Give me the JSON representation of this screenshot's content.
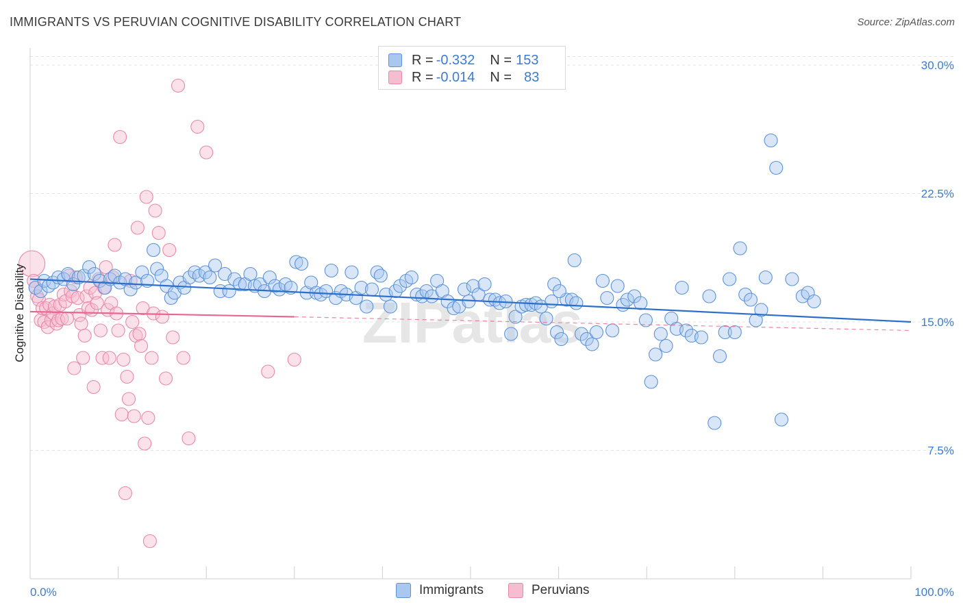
{
  "header": {
    "title": "IMMIGRANTS VS PERUVIAN COGNITIVE DISABILITY CORRELATION CHART",
    "source": "Source: ZipAtlas.com"
  },
  "legend": {
    "rows": [
      {
        "r_label": "R = ",
        "r_value": "-0.332",
        "n_label": "N = ",
        "n_value": "153"
      },
      {
        "r_label": "R = ",
        "r_value": "-0.014",
        "n_label": "N = ",
        "n_value": "83"
      }
    ]
  },
  "watermark": "ZIPatlas",
  "colors": {
    "immigrants_fill": "#a9c8ef",
    "immigrants_stroke": "#5b92d8",
    "immigrants_line": "#2c6fcb",
    "peruvians_fill": "#f6bcd0",
    "peruvians_stroke": "#e889a8",
    "peruvians_line": "#e8678f",
    "tick_label": "#3d7bd1",
    "grid": "#e3e3e3"
  },
  "chart_data": {
    "type": "scatter",
    "title": "IMMIGRANTS VS PERUVIAN COGNITIVE DISABILITY CORRELATION CHART",
    "ylabel": "Cognitive Disability",
    "xlabel": "",
    "xlim": [
      0,
      100
    ],
    "ylim": [
      0,
      31
    ],
    "x_tick_labels": [
      "0.0%",
      "100.0%"
    ],
    "y_ticks": [
      7.5,
      15.0,
      22.5,
      30.0
    ],
    "y_tick_labels": [
      "7.5%",
      "15.0%",
      "22.5%",
      "30.0%"
    ],
    "grid": "horizontal dashed",
    "legend_position": "top-center",
    "series": [
      {
        "name": "Immigrants",
        "trend": {
          "x": [
            0,
            100
          ],
          "y": [
            17.5,
            15.0
          ],
          "dashed_from": null
        },
        "points": [
          [
            0.6,
            17.0
          ],
          [
            1.2,
            16.8
          ],
          [
            1.6,
            17.4
          ],
          [
            2.1,
            17.1
          ],
          [
            2.6,
            17.3
          ],
          [
            3.2,
            17.6
          ],
          [
            3.8,
            17.5
          ],
          [
            4.3,
            17.8
          ],
          [
            4.9,
            17.2
          ],
          [
            5.5,
            17.6
          ],
          [
            6.1,
            17.7
          ],
          [
            6.7,
            18.2
          ],
          [
            7.3,
            17.8
          ],
          [
            7.9,
            17.4
          ],
          [
            8.5,
            17.0
          ],
          [
            9.1,
            17.5
          ],
          [
            9.6,
            17.7
          ],
          [
            10.2,
            17.3
          ],
          [
            10.8,
            17.5
          ],
          [
            11.4,
            16.9
          ],
          [
            12.0,
            17.3
          ],
          [
            12.7,
            17.9
          ],
          [
            13.3,
            17.4
          ],
          [
            14.0,
            19.2
          ],
          [
            14.4,
            18.1
          ],
          [
            14.9,
            17.7
          ],
          [
            15.5,
            17.1
          ],
          [
            16.0,
            16.4
          ],
          [
            16.4,
            16.7
          ],
          [
            17.0,
            17.3
          ],
          [
            17.5,
            17.0
          ],
          [
            18.1,
            17.6
          ],
          [
            18.7,
            17.9
          ],
          [
            19.2,
            17.7
          ],
          [
            19.9,
            17.9
          ],
          [
            20.4,
            17.6
          ],
          [
            21.0,
            18.3
          ],
          [
            21.6,
            16.8
          ],
          [
            22.1,
            17.8
          ],
          [
            22.6,
            16.8
          ],
          [
            23.2,
            17.5
          ],
          [
            23.8,
            17.2
          ],
          [
            24.4,
            17.2
          ],
          [
            25.0,
            17.8
          ],
          [
            25.5,
            17.1
          ],
          [
            26.1,
            17.2
          ],
          [
            26.6,
            16.8
          ],
          [
            27.2,
            17.6
          ],
          [
            27.8,
            17.1
          ],
          [
            28.3,
            16.9
          ],
          [
            29.0,
            17.2
          ],
          [
            29.6,
            17.0
          ],
          [
            30.2,
            18.5
          ],
          [
            30.8,
            18.4
          ],
          [
            31.4,
            16.7
          ],
          [
            31.9,
            17.3
          ],
          [
            32.5,
            16.7
          ],
          [
            33.0,
            16.6
          ],
          [
            33.6,
            16.8
          ],
          [
            34.2,
            18.0
          ],
          [
            34.7,
            16.4
          ],
          [
            35.3,
            16.8
          ],
          [
            35.9,
            16.6
          ],
          [
            36.5,
            17.9
          ],
          [
            37.0,
            16.4
          ],
          [
            37.6,
            17.0
          ],
          [
            38.2,
            15.9
          ],
          [
            38.8,
            16.9
          ],
          [
            39.4,
            17.9
          ],
          [
            39.8,
            17.7
          ],
          [
            40.4,
            16.6
          ],
          [
            40.9,
            15.9
          ],
          [
            41.5,
            16.8
          ],
          [
            42.0,
            17.1
          ],
          [
            42.7,
            17.4
          ],
          [
            43.3,
            17.6
          ],
          [
            43.9,
            16.6
          ],
          [
            44.5,
            16.5
          ],
          [
            45.0,
            16.8
          ],
          [
            45.6,
            16.5
          ],
          [
            46.2,
            17.4
          ],
          [
            46.8,
            16.8
          ],
          [
            47.4,
            16.2
          ],
          [
            48.1,
            15.8
          ],
          [
            48.7,
            15.9
          ],
          [
            49.3,
            16.9
          ],
          [
            49.8,
            16.2
          ],
          [
            50.3,
            17.1
          ],
          [
            50.9,
            16.6
          ],
          [
            51.6,
            17.2
          ],
          [
            52.2,
            16.3
          ],
          [
            52.8,
            16.3
          ],
          [
            53.3,
            16.1
          ],
          [
            54.0,
            16.2
          ],
          [
            54.6,
            14.3
          ],
          [
            55.1,
            15.3
          ],
          [
            55.8,
            15.9
          ],
          [
            56.3,
            16.0
          ],
          [
            56.9,
            16.0
          ],
          [
            57.4,
            16.1
          ],
          [
            58.0,
            15.9
          ],
          [
            58.6,
            15.2
          ],
          [
            59.2,
            16.2
          ],
          [
            59.8,
            14.4
          ],
          [
            60.3,
            14.0
          ],
          [
            60.9,
            16.3
          ],
          [
            61.5,
            16.3
          ],
          [
            62.0,
            16.1
          ],
          [
            62.6,
            14.3
          ],
          [
            63.2,
            14.0
          ],
          [
            63.8,
            13.7
          ],
          [
            64.3,
            14.4
          ],
          [
            65.0,
            17.4
          ],
          [
            65.5,
            16.4
          ],
          [
            66.1,
            14.5
          ],
          [
            66.7,
            17.1
          ],
          [
            67.3,
            16.0
          ],
          [
            67.8,
            16.3
          ],
          [
            68.6,
            16.5
          ],
          [
            69.3,
            16.1
          ],
          [
            69.9,
            15.1
          ],
          [
            70.5,
            11.5
          ],
          [
            71.0,
            13.1
          ],
          [
            71.6,
            14.3
          ],
          [
            72.2,
            13.6
          ],
          [
            72.8,
            15.2
          ],
          [
            73.4,
            14.6
          ],
          [
            74.0,
            17.0
          ],
          [
            74.5,
            14.5
          ],
          [
            75.1,
            14.2
          ],
          [
            76.2,
            14.1
          ],
          [
            77.1,
            16.5
          ],
          [
            77.7,
            9.1
          ],
          [
            78.3,
            13.0
          ],
          [
            78.9,
            14.4
          ],
          [
            79.4,
            17.5
          ],
          [
            80.0,
            14.4
          ],
          [
            80.6,
            19.3
          ],
          [
            81.2,
            16.6
          ],
          [
            81.8,
            16.3
          ],
          [
            82.4,
            15.1
          ],
          [
            83.0,
            15.7
          ],
          [
            83.5,
            17.6
          ],
          [
            84.1,
            25.6
          ],
          [
            84.7,
            24.0
          ],
          [
            85.3,
            9.3
          ],
          [
            86.5,
            17.5
          ],
          [
            87.7,
            16.5
          ],
          [
            88.3,
            16.7
          ],
          [
            89.0,
            16.2
          ],
          [
            61.8,
            18.6
          ],
          [
            59.5,
            17.2
          ],
          [
            60.1,
            16.8
          ]
        ]
      },
      {
        "name": "Peruvians",
        "trend": {
          "x": [
            0,
            30,
            100
          ],
          "y": [
            15.6,
            15.3,
            14.5
          ],
          "dashed_from": 30
        },
        "points": [
          [
            0.2,
            18.4
          ],
          [
            0.4,
            17.4
          ],
          [
            0.6,
            17.0
          ],
          [
            0.8,
            16.5
          ],
          [
            1.0,
            16.3
          ],
          [
            1.2,
            15.1
          ],
          [
            1.4,
            15.8
          ],
          [
            1.6,
            15.0
          ],
          [
            1.8,
            15.8
          ],
          [
            2.0,
            14.7
          ],
          [
            2.2,
            16.0
          ],
          [
            2.4,
            15.1
          ],
          [
            2.6,
            15.5
          ],
          [
            2.8,
            15.9
          ],
          [
            3.0,
            14.9
          ],
          [
            3.2,
            15.1
          ],
          [
            3.4,
            16.0
          ],
          [
            3.6,
            15.2
          ],
          [
            3.8,
            16.6
          ],
          [
            4.0,
            16.2
          ],
          [
            4.2,
            15.2
          ],
          [
            4.4,
            17.7
          ],
          [
            4.6,
            16.8
          ],
          [
            4.8,
            16.5
          ],
          [
            5.0,
            12.3
          ],
          [
            5.2,
            17.6
          ],
          [
            5.4,
            16.4
          ],
          [
            5.6,
            15.4
          ],
          [
            5.8,
            14.9
          ],
          [
            6.0,
            12.9
          ],
          [
            6.2,
            14.2
          ],
          [
            6.4,
            16.5
          ],
          [
            6.6,
            15.8
          ],
          [
            6.8,
            17.0
          ],
          [
            7.0,
            15.7
          ],
          [
            7.2,
            11.2
          ],
          [
            7.4,
            16.7
          ],
          [
            7.6,
            16.1
          ],
          [
            7.8,
            17.5
          ],
          [
            8.0,
            14.5
          ],
          [
            8.2,
            12.9
          ],
          [
            8.4,
            17.0
          ],
          [
            8.6,
            18.2
          ],
          [
            8.8,
            15.7
          ],
          [
            9.0,
            12.9
          ],
          [
            9.2,
            16.1
          ],
          [
            9.4,
            17.6
          ],
          [
            9.6,
            19.5
          ],
          [
            9.8,
            15.5
          ],
          [
            10.0,
            14.5
          ],
          [
            10.2,
            25.8
          ],
          [
            10.4,
            9.6
          ],
          [
            10.6,
            12.8
          ],
          [
            10.8,
            5.0
          ],
          [
            11.0,
            11.8
          ],
          [
            11.2,
            10.5
          ],
          [
            11.4,
            17.4
          ],
          [
            11.6,
            15.0
          ],
          [
            11.8,
            9.5
          ],
          [
            12.0,
            14.2
          ],
          [
            12.2,
            20.5
          ],
          [
            12.4,
            14.3
          ],
          [
            12.6,
            13.6
          ],
          [
            12.8,
            15.8
          ],
          [
            13.0,
            7.9
          ],
          [
            13.2,
            22.3
          ],
          [
            13.4,
            9.4
          ],
          [
            13.6,
            2.2
          ],
          [
            13.8,
            12.9
          ],
          [
            14.0,
            15.5
          ],
          [
            14.2,
            21.5
          ],
          [
            14.6,
            20.2
          ],
          [
            15.0,
            15.3
          ],
          [
            15.4,
            11.7
          ],
          [
            15.8,
            19.2
          ],
          [
            16.2,
            14.1
          ],
          [
            16.8,
            28.8
          ],
          [
            17.4,
            12.9
          ],
          [
            18.0,
            8.2
          ],
          [
            19.0,
            26.4
          ],
          [
            20.0,
            24.9
          ],
          [
            27.0,
            12.1
          ],
          [
            30.0,
            12.8
          ]
        ]
      }
    ]
  },
  "bottom_legend": {
    "items": [
      {
        "label": "Immigrants"
      },
      {
        "label": "Peruvians"
      }
    ]
  }
}
